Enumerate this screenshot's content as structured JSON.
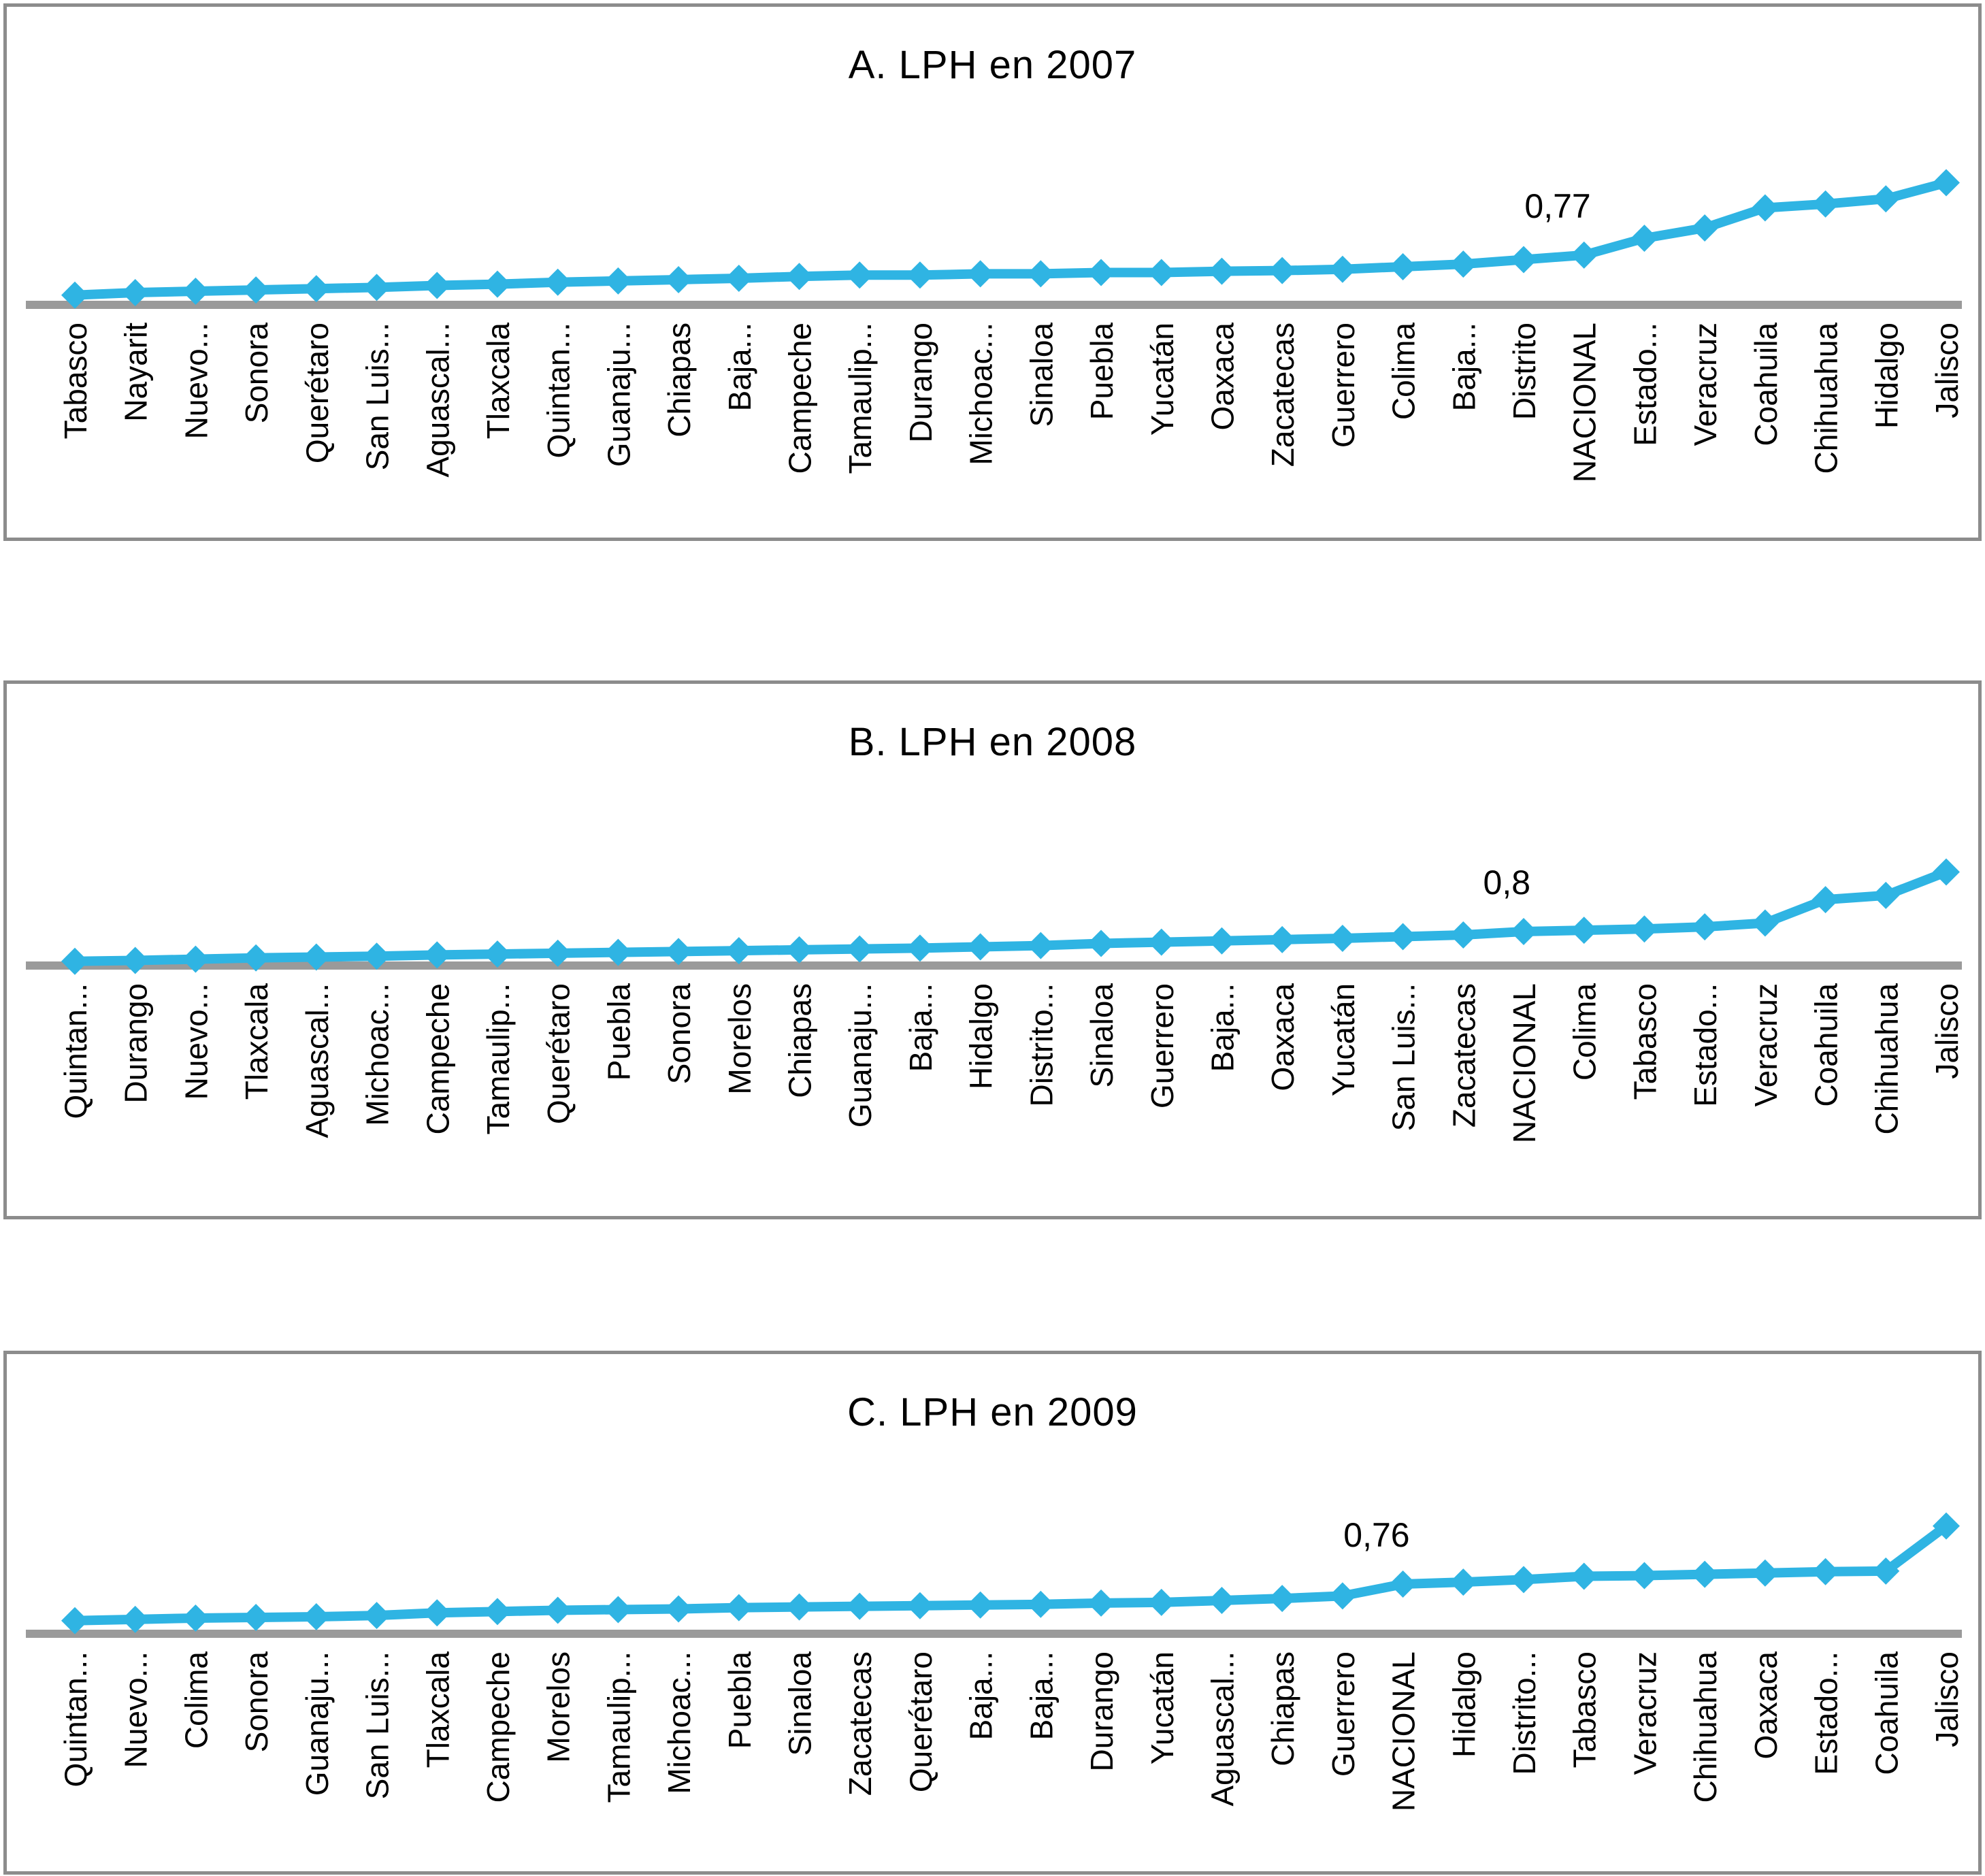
{
  "colors": {
    "series_blue": "#2fb4e3",
    "axis_gray": "#9a9a9a",
    "panel_border_gray": "#8c8c8c",
    "text_black": "#000000",
    "background": "#ffffff"
  },
  "chart_data": [
    {
      "type": "line",
      "title": "A. LPH en 2007",
      "marker": "diamond",
      "grid": false,
      "legend": false,
      "x_label_rotation_deg": 90,
      "ylim": [
        0,
        2.0
      ],
      "annotation": {
        "label": "0,77",
        "category": "NACIONAL"
      },
      "categories": [
        "Tabasco",
        "Nayarit",
        "Nuevo...",
        "Sonora",
        "Querétaro",
        "San Luis...",
        "Aguascal...",
        "Tlaxcala",
        "Quintan...",
        "Guanaju...",
        "Chiapas",
        "Baja...",
        "Campeche",
        "Tamaulip...",
        "Durango",
        "Michoac...",
        "Sinaloa",
        "Puebla",
        "Yucatán",
        "Oaxaca",
        "Zacatecas",
        "Guerrero",
        "Colima",
        "Baja...",
        "Distrito",
        "NACIONAL",
        "Estado...",
        "Veracruz",
        "Coahuila",
        "Chihuahua",
        "Hidalgo",
        "Jalisco"
      ],
      "values": [
        0.15,
        0.19,
        0.21,
        0.23,
        0.25,
        0.27,
        0.3,
        0.32,
        0.35,
        0.37,
        0.39,
        0.41,
        0.44,
        0.46,
        0.46,
        0.48,
        0.48,
        0.5,
        0.5,
        0.52,
        0.53,
        0.55,
        0.59,
        0.63,
        0.7,
        0.77,
        1.03,
        1.19,
        1.5,
        1.56,
        1.64,
        1.89
      ]
    },
    {
      "type": "line",
      "title": "B. LPH en 2008",
      "marker": "diamond",
      "grid": false,
      "legend": false,
      "x_label_rotation_deg": 90,
      "ylim": [
        0,
        2.3
      ],
      "annotation": {
        "label": "0,8",
        "category": "NACIONAL"
      },
      "categories": [
        "Quintan...",
        "Durango",
        "Nuevo...",
        "Tlaxcala",
        "Aguascal...",
        "Michoac...",
        "Campeche",
        "Tamaulip...",
        "Querétaro",
        "Puebla",
        "Sonora",
        "Morelos",
        "Chiapas",
        "Guanaju...",
        "Baja...",
        "Hidalgo",
        "Distrito...",
        "Sinaloa",
        "Guerrero",
        "Baja...",
        "Oaxaca",
        "Yucatán",
        "San Luis...",
        "Zacatecas",
        "NACIONAL",
        "Colima",
        "Tabasco",
        "Estado...",
        "Veracruz",
        "Coahuila",
        "Chihuahua",
        "Jalisco"
      ],
      "values": [
        0.1,
        0.12,
        0.15,
        0.18,
        0.2,
        0.22,
        0.25,
        0.27,
        0.29,
        0.31,
        0.33,
        0.35,
        0.37,
        0.39,
        0.41,
        0.44,
        0.47,
        0.52,
        0.55,
        0.58,
        0.61,
        0.64,
        0.68,
        0.72,
        0.8,
        0.83,
        0.86,
        0.91,
        1.0,
        1.55,
        1.65,
        2.2
      ]
    },
    {
      "type": "line",
      "title": "C. LPH en 2009",
      "marker": "diamond",
      "grid": false,
      "legend": false,
      "x_label_rotation_deg": 90,
      "ylim": [
        0,
        1.8
      ],
      "annotation": {
        "label": "0,76",
        "category": "NACIONAL"
      },
      "categories": [
        "Quintan...",
        "Nuevo...",
        "Colima",
        "Sonora",
        "Guanaju...",
        "San Luis...",
        "Tlaxcala",
        "Campeche",
        "Morelos",
        "Tamaulip...",
        "Michoac...",
        "Puebla",
        "Sinaloa",
        "Zacatecas",
        "Querétaro",
        "Baja...",
        "Baja...",
        "Durango",
        "Yucatán",
        "Aguascal...",
        "Chiapas",
        "Guerrero",
        "NACIONAL",
        "Hidalgo",
        "Distrito...",
        "Tabasco",
        "Veracruz",
        "Chihuahua",
        "Oaxaca",
        "Estado...",
        "Coahuila",
        "Jalisco"
      ],
      "values": [
        0.2,
        0.22,
        0.24,
        0.25,
        0.26,
        0.28,
        0.32,
        0.34,
        0.36,
        0.37,
        0.38,
        0.4,
        0.41,
        0.42,
        0.43,
        0.44,
        0.45,
        0.47,
        0.48,
        0.51,
        0.54,
        0.58,
        0.76,
        0.79,
        0.83,
        0.88,
        0.89,
        0.91,
        0.93,
        0.95,
        0.96,
        1.65
      ]
    }
  ]
}
